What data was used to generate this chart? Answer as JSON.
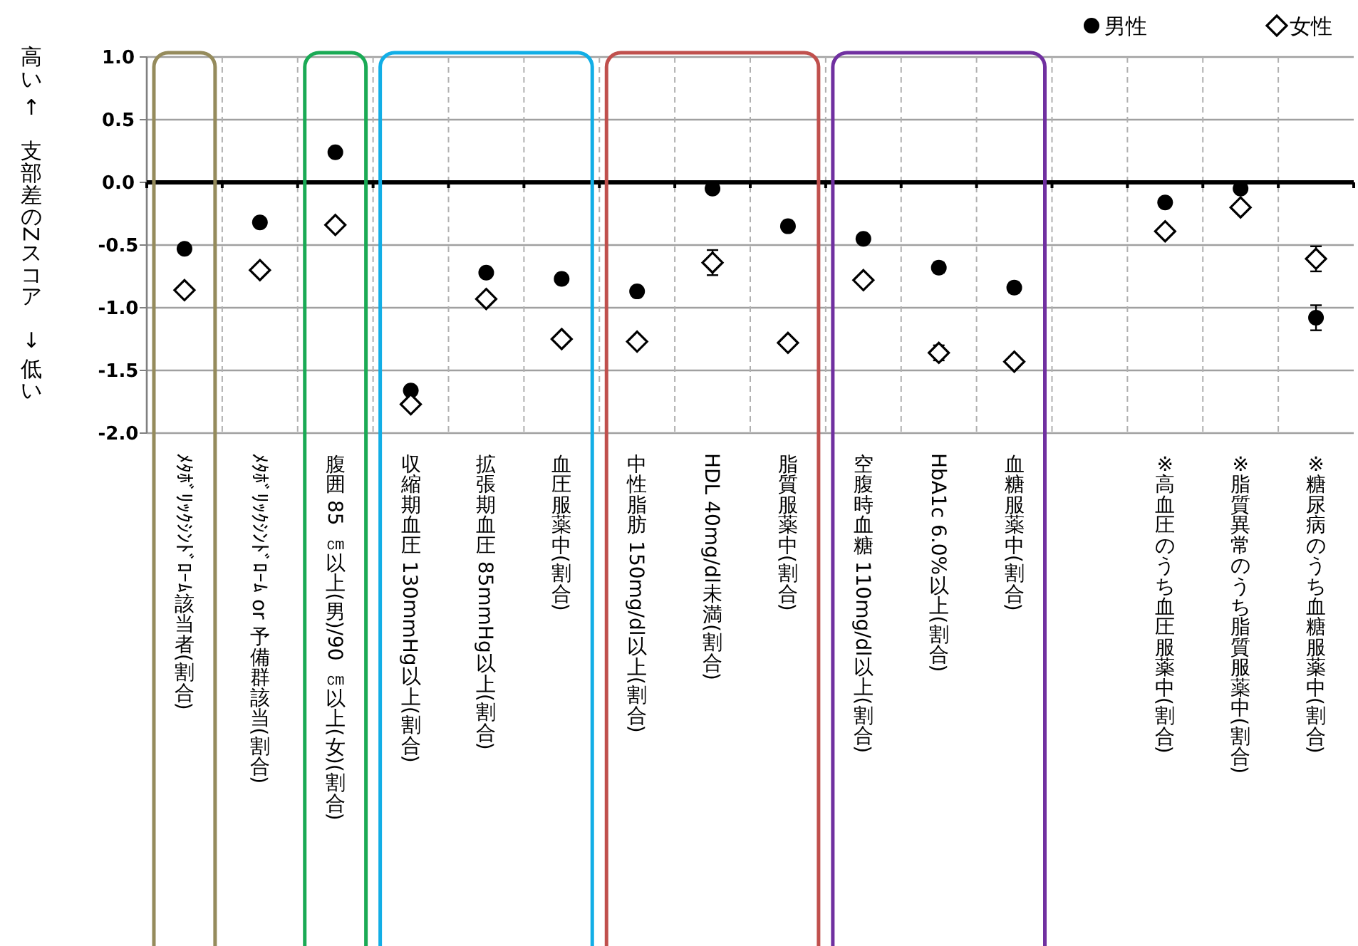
{
  "chart_data": {
    "type": "scatter",
    "ylabel": "高い ↑　支部差のZスコア　↓ 低い",
    "categories": [
      "ﾒﾀﾎﾞﾘｯｸｼﾝﾄﾞﾛｰﾑ該当者(割合)",
      "ﾒﾀﾎﾞﾘｯｸｼﾝﾄﾞﾛｰﾑ or 予備群該当(割合)",
      "腹囲 85 ㎝以上(男)/90 ㎝以上(女)(割合)",
      "収縮期血圧 130mmHg以上(割合)",
      "拡張期血圧 85mmHg以上(割合)",
      "血圧服薬中(割合)",
      "中性脂肪 150mg/dl以上(割合)",
      "HDL 40mg/dl未満(割合)",
      "脂質服薬中(割合)",
      "空腹時血糖 110mg/dl以上(割合)",
      "HbA1c 6.0%以上(割合)",
      "血糖服薬中(割合)",
      null,
      "※高血圧のうち血圧服薬中(割合)",
      "※脂質異常のうち脂質服薬中(割合)",
      "※糖尿病のうち血糖服薬中(割合)"
    ],
    "series": [
      {
        "name": "男性",
        "color": "#000000",
        "marker": "circle",
        "values": [
          -0.53,
          -0.32,
          0.24,
          -1.66,
          -0.72,
          -0.77,
          -0.87,
          -0.05,
          -0.35,
          -0.45,
          -0.68,
          -0.84,
          null,
          -0.16,
          -0.05,
          -1.08
        ],
        "errors": [
          null,
          null,
          null,
          null,
          null,
          null,
          null,
          null,
          null,
          null,
          0.04,
          0.04,
          null,
          null,
          null,
          0.1
        ]
      },
      {
        "name": "女性",
        "color": "#000000",
        "marker": "diamond",
        "values": [
          -0.86,
          -0.7,
          -0.34,
          -1.77,
          -0.93,
          -1.25,
          -1.27,
          -0.64,
          -1.28,
          -0.78,
          -1.36,
          -1.43,
          null,
          -0.39,
          -0.2,
          -0.61
        ],
        "errors": [
          null,
          null,
          null,
          null,
          null,
          null,
          null,
          0.1,
          null,
          null,
          0.06,
          0.04,
          null,
          null,
          null,
          0.1
        ]
      }
    ],
    "ylim": [
      -2.0,
      1.0
    ],
    "yticks": [
      {
        "value": 1.0,
        "label": "1.0"
      },
      {
        "value": 0.5,
        "label": "0.5"
      },
      {
        "value": 0.0,
        "label": "0.0"
      },
      {
        "value": -0.5,
        "label": "-0.5"
      },
      {
        "value": -1.0,
        "label": "-1.0"
      },
      {
        "value": -1.5,
        "label": "-1.5"
      },
      {
        "value": -2.0,
        "label": "-2.0"
      }
    ],
    "grid": true,
    "legend": "top right"
  }
}
